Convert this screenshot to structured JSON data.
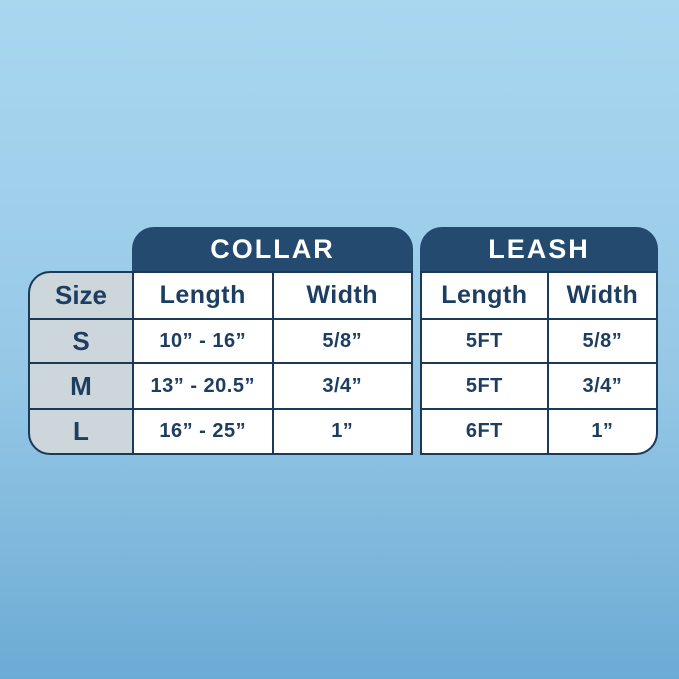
{
  "colors": {
    "background_top": "#a9d7f0",
    "background_bottom": "#6cabd4",
    "header_navy": "#254a6f",
    "border_navy": "#1b3a58",
    "text_navy": "#1d3e61",
    "size_column_bg": "#ccd6db",
    "cell_bg": "#ffffff",
    "header_text": "#ffffff"
  },
  "chart_data": {
    "type": "table",
    "title": "",
    "group_headers": {
      "collar": "COLLAR",
      "leash": "LEASH"
    },
    "column_headers": {
      "size": "Size",
      "length": "Length",
      "width": "Width"
    },
    "rows": [
      {
        "size": "S",
        "collar_length": "10” - 16”",
        "collar_width": "5/8”",
        "leash_length": "5FT",
        "leash_width": "5/8”"
      },
      {
        "size": "M",
        "collar_length": "13” - 20.5”",
        "collar_width": "3/4”",
        "leash_length": "5FT",
        "leash_width": "3/4”"
      },
      {
        "size": "L",
        "collar_length": "16” - 25”",
        "collar_width": "1”",
        "leash_length": "6FT",
        "leash_width": "1”"
      }
    ]
  }
}
